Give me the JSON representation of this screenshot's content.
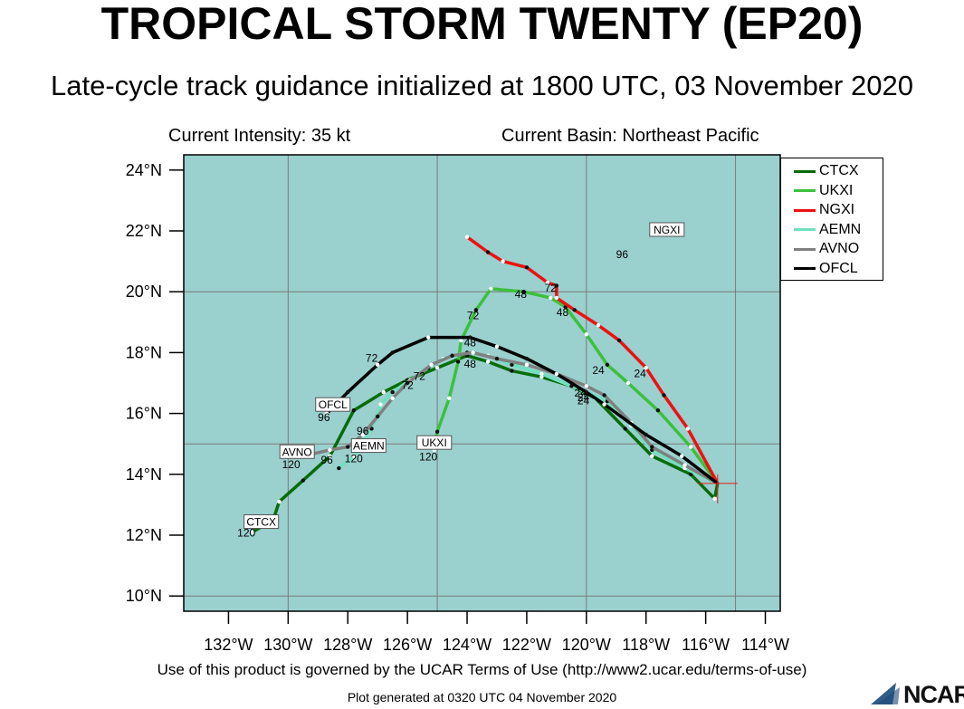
{
  "title": "TROPICAL STORM TWENTY (EP20)",
  "subtitle": "Late-cycle track guidance initialized at 1800 UTC, 03 November 2020",
  "current_intensity": "Current Intensity: 35 kt",
  "current_basin": "Current Basin: Northeast Pacific",
  "terms": "Use of this product is governed by the UCAR Terms of Use (http://www2.ucar.edu/terms-of-use)",
  "generated": "Plot generated at 0320 UTC   04 November 2020",
  "logo_text": "NCAR",
  "colors": {
    "ocean": "#9ad0ce",
    "grid": "#7a7a7a",
    "CTCX": "#086c08",
    "UKXI": "#3cc03c",
    "NGXI": "#ee1010",
    "AEMN": "#70e0c0",
    "AVNO": "#808080",
    "OFCL": "#000000",
    "initial_marker": "#e02020"
  },
  "chart_data": {
    "type": "track-map",
    "x_axis": {
      "lon_range": [
        133.5,
        113.5
      ],
      "ticks": [
        132,
        130,
        128,
        126,
        124,
        122,
        120,
        118,
        116,
        114
      ],
      "tick_labels": [
        "132°W",
        "130°W",
        "128°W",
        "126°W",
        "124°W",
        "122°W",
        "120°W",
        "118°W",
        "116°W",
        "114°W"
      ]
    },
    "y_axis": {
      "lat_range": [
        9.5,
        24.5
      ],
      "ticks": [
        10,
        12,
        14,
        16,
        18,
        20,
        22,
        24
      ],
      "tick_labels": [
        "10°N",
        "12°N",
        "14°N",
        "16°N",
        "18°N",
        "20°N",
        "22°N",
        "24°N"
      ]
    },
    "gridlines": {
      "lon": [
        130,
        125,
        120,
        115
      ],
      "lat": [
        10,
        15,
        20
      ]
    },
    "initial_position": [
      115.6,
      13.7
    ],
    "legend": [
      "CTCX",
      "UKXI",
      "NGXI",
      "AEMN",
      "AVNO",
      "OFCL"
    ],
    "series": [
      {
        "name": "CTCX",
        "points": [
          [
            115.6,
            13.7
          ],
          [
            115.7,
            13.2
          ],
          [
            116.5,
            14.0
          ],
          [
            117.8,
            14.6
          ],
          [
            118.7,
            15.5
          ],
          [
            119.7,
            16.5
          ],
          [
            120.5,
            16.9
          ],
          [
            121.5,
            17.2
          ],
          [
            122.5,
            17.4
          ],
          [
            123.3,
            17.7
          ],
          [
            124.0,
            17.9
          ],
          [
            125.0,
            17.5
          ],
          [
            126.0,
            17.1
          ],
          [
            126.8,
            16.7
          ],
          [
            127.8,
            16.1
          ],
          [
            128.6,
            14.6
          ],
          [
            129.5,
            13.8
          ],
          [
            130.3,
            13.1
          ],
          [
            130.5,
            12.5
          ],
          [
            131.2,
            12.1
          ]
        ],
        "labels": [
          {
            "text": "24",
            "at": [
              120.1,
              16.3
            ]
          },
          {
            "text": "120",
            "at": [
              131.4,
              11.95
            ]
          }
        ],
        "boxed": {
          "text": "CTCX",
          "at": [
            130.9,
            12.4
          ]
        }
      },
      {
        "name": "UKXI",
        "points": [
          [
            115.6,
            13.7
          ],
          [
            116.5,
            14.9
          ],
          [
            117.6,
            16.1
          ],
          [
            118.6,
            17.0
          ],
          [
            119.3,
            17.6
          ],
          [
            120.0,
            18.6
          ],
          [
            120.7,
            19.5
          ],
          [
            121.2,
            19.8
          ],
          [
            122.1,
            20.0
          ],
          [
            123.2,
            20.1
          ],
          [
            123.7,
            19.4
          ],
          [
            124.2,
            18.4
          ],
          [
            124.3,
            17.7
          ],
          [
            124.6,
            16.5
          ],
          [
            125.0,
            15.4
          ],
          [
            125.1,
            14.8
          ]
        ],
        "labels": [
          {
            "text": "24",
            "at": [
              119.6,
              17.3
            ]
          },
          {
            "text": "48",
            "at": [
              120.8,
              19.2
            ]
          },
          {
            "text": "48",
            "at": [
              122.2,
              19.8
            ]
          },
          {
            "text": "72",
            "at": [
              123.8,
              19.1
            ]
          },
          {
            "text": "120",
            "at": [
              125.3,
              14.45
            ]
          }
        ],
        "boxed": {
          "text": "UKXI",
          "at": [
            125.1,
            15.0
          ]
        }
      },
      {
        "name": "NGXI",
        "points": [
          [
            115.6,
            13.7
          ],
          [
            116.6,
            15.5
          ],
          [
            117.4,
            16.6
          ],
          [
            118.0,
            17.5
          ],
          [
            118.9,
            18.4
          ],
          [
            119.6,
            18.9
          ],
          [
            120.4,
            19.4
          ],
          [
            121.0,
            19.8
          ],
          [
            121.0,
            20.2
          ],
          [
            121.3,
            20.3
          ],
          [
            122.0,
            20.8
          ],
          [
            122.8,
            21.0
          ],
          [
            123.3,
            21.3
          ],
          [
            124.0,
            21.8
          ]
        ],
        "labels": [
          {
            "text": "24",
            "at": [
              118.2,
              17.2
            ]
          },
          {
            "text": "72",
            "at": [
              121.2,
              20.0
            ]
          },
          {
            "text": "96",
            "at": [
              118.8,
              21.1
            ]
          }
        ],
        "boxed": {
          "text": "NGXI",
          "at": [
            117.3,
            22.0
          ]
        }
      },
      {
        "name": "AEMN",
        "points": [
          [
            115.6,
            13.7
          ],
          [
            116.7,
            14.2
          ],
          [
            117.8,
            14.8
          ],
          [
            118.5,
            15.6
          ],
          [
            119.3,
            16.4
          ],
          [
            120.0,
            16.7
          ],
          [
            120.5,
            16.9
          ],
          [
            121.5,
            17.3
          ],
          [
            122.5,
            17.6
          ],
          [
            123.3,
            17.9
          ],
          [
            124.0,
            18.0
          ],
          [
            124.8,
            17.8
          ],
          [
            125.3,
            17.5
          ],
          [
            125.9,
            17.1
          ],
          [
            126.5,
            16.7
          ],
          [
            126.9,
            16.3
          ],
          [
            127.2,
            15.5
          ],
          [
            127.8,
            14.6
          ],
          [
            128.3,
            14.2
          ]
        ],
        "labels": [
          {
            "text": "24",
            "at": [
              120.1,
              16.4
            ]
          },
          {
            "text": "72",
            "at": [
              126.0,
              16.8
            ]
          },
          {
            "text": "96",
            "at": [
              127.5,
              15.3
            ]
          },
          {
            "text": "120",
            "at": [
              127.8,
              14.4
            ]
          }
        ],
        "boxed": {
          "text": "AEMN",
          "at": [
            127.3,
            14.9
          ]
        }
      },
      {
        "name": "AVNO",
        "points": [
          [
            115.6,
            13.7
          ],
          [
            116.7,
            14.3
          ],
          [
            117.8,
            14.9
          ],
          [
            118.5,
            15.7
          ],
          [
            119.4,
            16.6
          ],
          [
            120.0,
            16.9
          ],
          [
            121.0,
            17.3
          ],
          [
            122.0,
            17.6
          ],
          [
            123.0,
            17.8
          ],
          [
            123.8,
            18.0
          ],
          [
            124.5,
            17.9
          ],
          [
            125.2,
            17.6
          ],
          [
            126.0,
            17.0
          ],
          [
            126.5,
            16.5
          ],
          [
            127.0,
            15.9
          ],
          [
            127.5,
            15.3
          ],
          [
            128.0,
            14.9
          ],
          [
            128.6,
            14.8
          ],
          [
            129.5,
            14.6
          ]
        ],
        "labels": [
          {
            "text": "72",
            "at": [
              125.6,
              17.1
            ]
          },
          {
            "text": "96",
            "at": [
              128.7,
              14.35
            ]
          },
          {
            "text": "120",
            "at": [
              129.9,
              14.2
            ]
          }
        ],
        "boxed": {
          "text": "AVNO",
          "at": [
            129.7,
            14.7
          ]
        }
      },
      {
        "name": "OFCL",
        "points": [
          [
            115.6,
            13.7
          ],
          [
            116.8,
            14.6
          ],
          [
            118.0,
            15.3
          ],
          [
            119.4,
            16.3
          ],
          [
            120.0,
            16.7
          ],
          [
            121.0,
            17.3
          ],
          [
            122.0,
            17.8
          ],
          [
            123.0,
            18.2
          ],
          [
            123.9,
            18.5
          ],
          [
            125.3,
            18.5
          ],
          [
            126.5,
            18.0
          ],
          [
            127.0,
            17.6
          ],
          [
            128.0,
            16.7
          ],
          [
            128.7,
            16.0
          ]
        ],
        "labels": [
          {
            "text": "24",
            "at": [
              120.2,
              16.55
            ]
          },
          {
            "text": "48",
            "at": [
              123.9,
              17.5
            ]
          },
          {
            "text": "48",
            "at": [
              123.9,
              18.2
            ]
          },
          {
            "text": "72",
            "at": [
              127.2,
              17.7
            ]
          },
          {
            "text": "96",
            "at": [
              128.8,
              15.75
            ]
          }
        ],
        "boxed": {
          "text": "OFCL",
          "at": [
            128.5,
            16.25
          ]
        }
      }
    ]
  }
}
